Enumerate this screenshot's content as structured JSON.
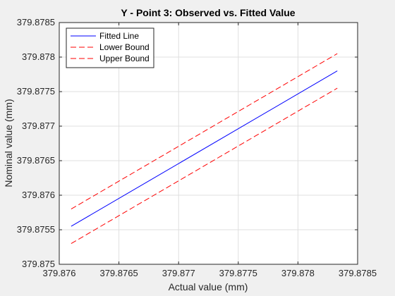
{
  "chart_data": {
    "type": "line",
    "title": "Y - Point 3: Observed vs. Fitted Value",
    "xlabel": "Actual value (mm)",
    "ylabel": "Nominal value (mm)",
    "xlim": [
      379.876,
      379.8785
    ],
    "ylim": [
      379.875,
      379.8785
    ],
    "xticks": [
      379.876,
      379.8765,
      379.877,
      379.8775,
      379.878,
      379.8785
    ],
    "xtick_labels": [
      "379.876",
      "379.8765",
      "379.877",
      "379.8775",
      "379.878",
      "379.8785"
    ],
    "yticks": [
      379.875,
      379.8755,
      379.876,
      379.8765,
      379.877,
      379.8775,
      379.878,
      379.8785
    ],
    "ytick_labels": [
      "379.875",
      "379.8755",
      "379.876",
      "379.8765",
      "379.877",
      "379.8775",
      "379.878",
      "379.8785"
    ],
    "grid": true,
    "legend_position": "top-left",
    "series": [
      {
        "name": "Fitted Line",
        "color": "#0000ff",
        "dash": "solid",
        "x": [
          379.8761,
          379.87833
        ],
        "y": [
          379.87555,
          379.8778
        ]
      },
      {
        "name": "Lower Bound",
        "color": "#ff0000",
        "dash": "dashed",
        "x": [
          379.8761,
          379.87833
        ],
        "y": [
          379.8753,
          379.87755
        ]
      },
      {
        "name": "Upper Bound",
        "color": "#ff0000",
        "dash": "dashed",
        "x": [
          379.8761,
          379.87833
        ],
        "y": [
          379.8758,
          379.87805
        ]
      }
    ]
  }
}
